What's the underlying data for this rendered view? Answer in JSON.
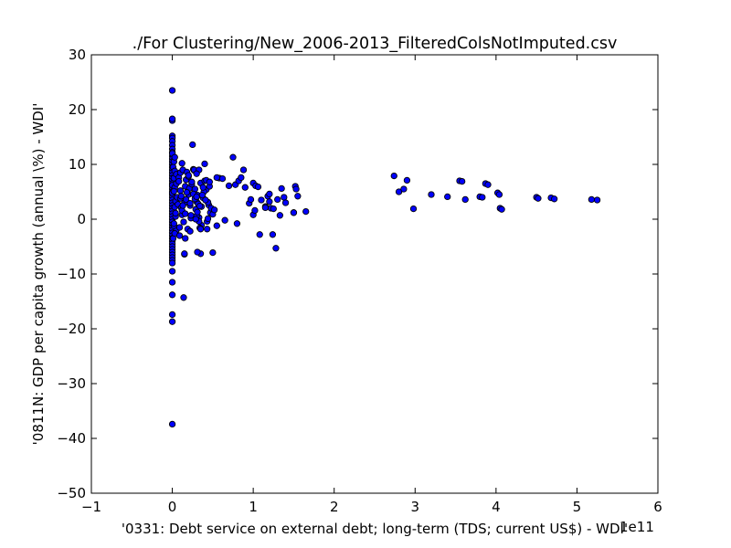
{
  "chart_data": {
    "type": "scatter",
    "title": "./For Clustering/New_2006-2013_FilteredColsNotImputed.csv",
    "xlabel": "'0331: Debt service on external debt; long-term  (TDS; current US$) - WDI'",
    "ylabel": "'0811N: GDP per capita growth  (annual \\%) - WDI'",
    "x_offset_text": "1e11",
    "xlim": [
      -1,
      6
    ],
    "ylim": [
      -50,
      30
    ],
    "xticks": [
      -1,
      0,
      1,
      2,
      3,
      4,
      5,
      6
    ],
    "xtick_labels": [
      "−1",
      "0",
      "1",
      "2",
      "3",
      "4",
      "5",
      "6"
    ],
    "yticks": [
      30,
      20,
      10,
      0,
      -10,
      -20,
      -30,
      -40,
      -50
    ],
    "ytick_labels": [
      "30",
      "20",
      "10",
      "0",
      "−10",
      "−20",
      "−30",
      "−40",
      "−50"
    ],
    "grid": false,
    "marker_color": "#0000ff",
    "x": [
      0.0,
      0.0,
      0.0,
      0.0,
      0.0,
      0.0,
      0.0,
      0.0,
      0.0,
      0.0,
      0.0,
      0.0,
      0.0,
      0.0,
      0.0,
      0.0,
      0.0,
      0.0,
      0.0,
      0.0,
      0.0,
      0.0,
      0.0,
      0.0,
      0.0,
      0.0,
      0.0,
      0.0,
      0.0,
      0.0,
      0.0,
      0.0,
      0.0,
      0.0,
      0.0,
      0.0,
      0.0,
      0.0,
      0.0,
      0.0,
      0.0,
      0.0,
      0.0,
      0.0,
      0.0,
      0.0,
      0.0,
      0.0,
      0.0,
      0.0,
      0.0,
      0.0,
      0.0,
      0.0,
      0.0,
      0.0,
      0.0,
      0.0,
      0.01,
      0.02,
      0.03,
      0.03,
      0.04,
      0.05,
      0.02,
      0.03,
      0.01,
      0.04,
      0.02,
      0.05,
      0.03,
      0.04,
      0.02,
      0.06,
      0.05,
      0.03,
      0.07,
      0.02,
      0.08,
      0.1,
      0.12,
      0.09,
      0.11,
      0.08,
      0.1,
      0.12,
      0.09,
      0.1,
      0.11,
      0.12,
      0.13,
      0.14,
      0.15,
      0.16,
      0.18,
      0.2,
      0.22,
      0.17,
      0.19,
      0.21,
      0.23,
      0.15,
      0.17,
      0.14,
      0.16,
      0.18,
      0.2,
      0.22,
      0.24,
      0.26,
      0.28,
      0.3,
      0.25,
      0.27,
      0.29,
      0.31,
      0.33,
      0.35,
      0.38,
      0.4,
      0.42,
      0.45,
      0.47,
      0.36,
      0.34,
      0.32,
      0.3,
      0.28,
      0.26,
      0.24,
      0.22,
      0.2,
      0.27,
      0.3,
      0.33,
      0.36,
      0.39,
      0.42,
      0.44,
      0.46,
      0.48,
      0.5,
      0.52,
      0.55,
      0.58,
      0.4,
      0.43,
      0.46,
      0.33,
      0.35,
      0.37,
      0.41,
      0.44,
      0.38,
      0.34,
      0.31,
      0.29,
      0.62,
      0.65,
      0.7,
      0.75,
      0.78,
      0.8,
      0.82,
      0.85,
      0.88,
      0.9,
      0.95,
      0.97,
      1.0,
      1.03,
      1.06,
      1.08,
      1.1,
      1.15,
      1.18,
      1.2,
      1.22,
      1.25,
      1.28,
      1.3,
      1.35,
      1.38,
      1.4,
      1.5,
      1.52,
      1.53,
      1.55,
      1.65,
      1.0,
      1.02,
      1.24,
      1.5,
      1.2,
      1.15,
      1.33,
      0.15,
      0.16,
      0.35,
      0.5,
      0.23,
      0.13,
      0.3,
      0.31,
      0.55,
      0.43,
      2.74,
      2.8,
      2.86,
      2.9,
      2.98,
      3.2,
      3.4,
      3.55,
      3.58,
      3.62,
      3.8,
      3.83,
      3.87,
      3.9,
      4.02,
      4.05,
      4.04,
      4.07,
      4.5,
      4.52,
      4.68,
      4.72,
      5.18,
      5.25
    ],
    "y": [
      23.5,
      18.0,
      18.3,
      15.2,
      14.8,
      14.2,
      13.5,
      12.8,
      12.2,
      11.5,
      11.0,
      10.5,
      10.0,
      9.5,
      9.0,
      8.5,
      8.0,
      7.5,
      7.0,
      6.5,
      6.0,
      5.5,
      5.0,
      4.5,
      4.0,
      3.5,
      3.0,
      2.5,
      2.0,
      1.5,
      1.0,
      0.5,
      0.0,
      -0.5,
      -1.0,
      -1.5,
      -2.0,
      -2.5,
      -3.0,
      -3.5,
      -4.0,
      -4.5,
      -5.0,
      -5.5,
      -6.0,
      -6.5,
      -7.0,
      -7.5,
      -8.0,
      -9.5,
      -11.5,
      -13.8,
      -17.4,
      -18.7,
      -37.4,
      12.0,
      6.2,
      4.8,
      9.5,
      7.5,
      5.8,
      2.2,
      0.5,
      -2.0,
      10.5,
      8.8,
      -3.5,
      3.3,
      -1.2,
      6.5,
      11.3,
      1.1,
      -0.8,
      4.0,
      8.2,
      -2.6,
      2.7,
      5.1,
      7.6,
      3.8,
      10.2,
      -1.5,
      2.1,
      6.9,
      5.2,
      0.8,
      -3.0,
      8.5,
      4.2,
      1.6,
      9.0,
      -0.5,
      3.0,
      6.0,
      8.6,
      4.5,
      2.5,
      7.2,
      -1.8,
      5.6,
      0.2,
      -6.4,
      3.6,
      -14.3,
      1.0,
      4.9,
      7.8,
      2.9,
      6.4,
      9.1,
      5.5,
      3.2,
      13.6,
      8.9,
      1.8,
      4.4,
      0.3,
      6.6,
      3.9,
      7.0,
      5.4,
      2.6,
      1.2,
      -1.1,
      -1.6,
      2.8,
      0.6,
      3.7,
      4.6,
      6.8,
      -2.2,
      8.0,
      9.0,
      4.1,
      -0.4,
      2.3,
      5.0,
      7.1,
      3.1,
      6.0,
      2.0,
      0.9,
      1.7,
      -1.2,
      7.5,
      10.1,
      -0.4,
      6.8,
      9.0,
      -6.3,
      4.4,
      3.5,
      0.1,
      5.8,
      2.4,
      1.3,
      0.0,
      7.4,
      -0.2,
      6.1,
      11.3,
      6.3,
      -0.8,
      7.0,
      7.6,
      9.0,
      5.8,
      2.9,
      3.6,
      6.6,
      6.1,
      5.9,
      -2.8,
      3.5,
      2.3,
      4.2,
      3.2,
      2.0,
      1.9,
      -5.3,
      3.6,
      5.6,
      4.0,
      3.0,
      1.2,
      6.0,
      5.5,
      4.2,
      1.4,
      0.8,
      1.6,
      -2.8,
      1.2,
      4.6,
      2.1,
      0.7,
      -6.3,
      -3.5,
      -1.8,
      -6.1,
      0.7,
      2.5,
      8.3,
      -6.0,
      7.6,
      -1.8,
      7.9,
      5.0,
      5.5,
      7.1,
      1.9,
      4.5,
      4.1,
      7.0,
      6.9,
      3.6,
      4.1,
      4.0,
      6.5,
      6.3,
      4.8,
      2.0,
      4.5,
      1.8,
      4.0,
      3.8,
      3.9,
      3.7,
      3.6,
      3.5
    ]
  }
}
